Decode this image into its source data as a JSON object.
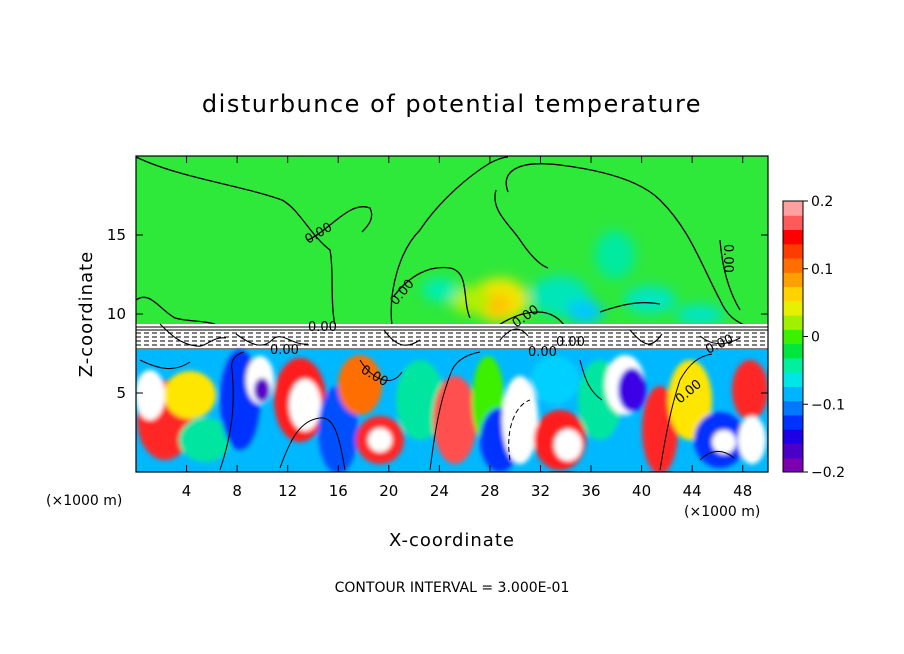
{
  "chart_data": {
    "type": "heatmap",
    "title": "disturbunce of potential temperature",
    "xlabel": "X-coordinate",
    "ylabel": "Z-coordinate",
    "x_unit_left": "(×1000 m)",
    "x_unit_right": "(×1000 m)",
    "footer": "CONTOUR INTERVAL = 3.000E-01",
    "xlim": [
      0,
      50
    ],
    "ylim": [
      0,
      20
    ],
    "x_ticks": [
      4,
      8,
      12,
      16,
      20,
      24,
      28,
      32,
      36,
      40,
      44,
      48
    ],
    "y_ticks": [
      5,
      10,
      15
    ],
    "colorbar": {
      "range": [
        -0.2,
        0.2
      ],
      "ticks": [
        0.2,
        0.1,
        0,
        -0.1,
        -0.2
      ],
      "tick_labels": [
        "0.2",
        "0.1",
        "0",
        "−0.1",
        "−0.2"
      ],
      "colors": [
        "#7b00b4",
        "#4b00c8",
        "#1e00e6",
        "#0032ff",
        "#0078ff",
        "#00b4ff",
        "#00e6e6",
        "#00f0a0",
        "#00e63c",
        "#3cf000",
        "#a0f000",
        "#e6f000",
        "#ffd200",
        "#ffa000",
        "#ff6e00",
        "#ff3c00",
        "#ff0000",
        "#ff5a5a",
        "#ffa0a0"
      ]
    },
    "contour_labels": [
      "0.00",
      "0.00",
      "0.00",
      "0.00",
      "0.00",
      "0.00",
      "0.00",
      "0.00",
      "0.00",
      "0.00",
      "0.00"
    ],
    "background_value": 0.0,
    "upper_layer_description_values": {
      "background": 0.0,
      "warm_anomaly_max": 0.06,
      "cool_anomaly_min": -0.05
    },
    "lower_layer_range": [
      -0.2,
      0.2
    ],
    "layer_interface_z": 8.5
  }
}
